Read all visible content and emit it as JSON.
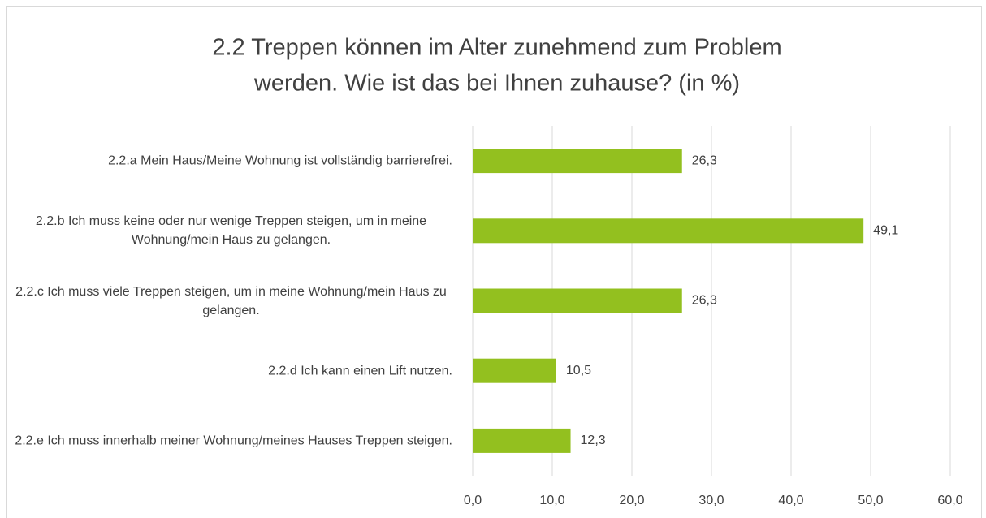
{
  "chart_data": {
    "type": "bar",
    "orientation": "horizontal",
    "title": [
      "2.2 Treppen können im Alter zunehmend zum Problem",
      "werden. Wie ist das bei Ihnen zuhause? (in %)"
    ],
    "categories": [
      "2.2.a Mein Haus/Meine Wohnung ist vollständig barrierefrei.",
      "2.2.b Ich muss keine oder nur wenige Treppen steigen, um in meine Wohnung/mein Haus zu gelangen.",
      "2.2.c Ich muss viele Treppen steigen, um in meine Wohnung/mein Haus zu gelangen.",
      "2.2.d Ich kann einen Lift nutzen.",
      "2.2.e Ich muss innerhalb meiner Wohnung/meines Hauses Treppen steigen."
    ],
    "values": [
      26.3,
      49.1,
      26.3,
      10.5,
      12.3
    ],
    "value_labels": [
      "26,3",
      "49,1",
      "26,3",
      "10,5",
      "12,3"
    ],
    "color": "#93c01f",
    "xlim": [
      0,
      60
    ],
    "xticks": [
      {
        "value": 0,
        "label": "0,0"
      },
      {
        "value": 10,
        "label": "10,0"
      },
      {
        "value": 20,
        "label": "20,0"
      },
      {
        "value": 30,
        "label": "30,0"
      },
      {
        "value": 40,
        "label": "40,0"
      },
      {
        "value": 50,
        "label": "50,0"
      },
      {
        "value": 60,
        "label": "60,0"
      }
    ],
    "grid": true
  }
}
